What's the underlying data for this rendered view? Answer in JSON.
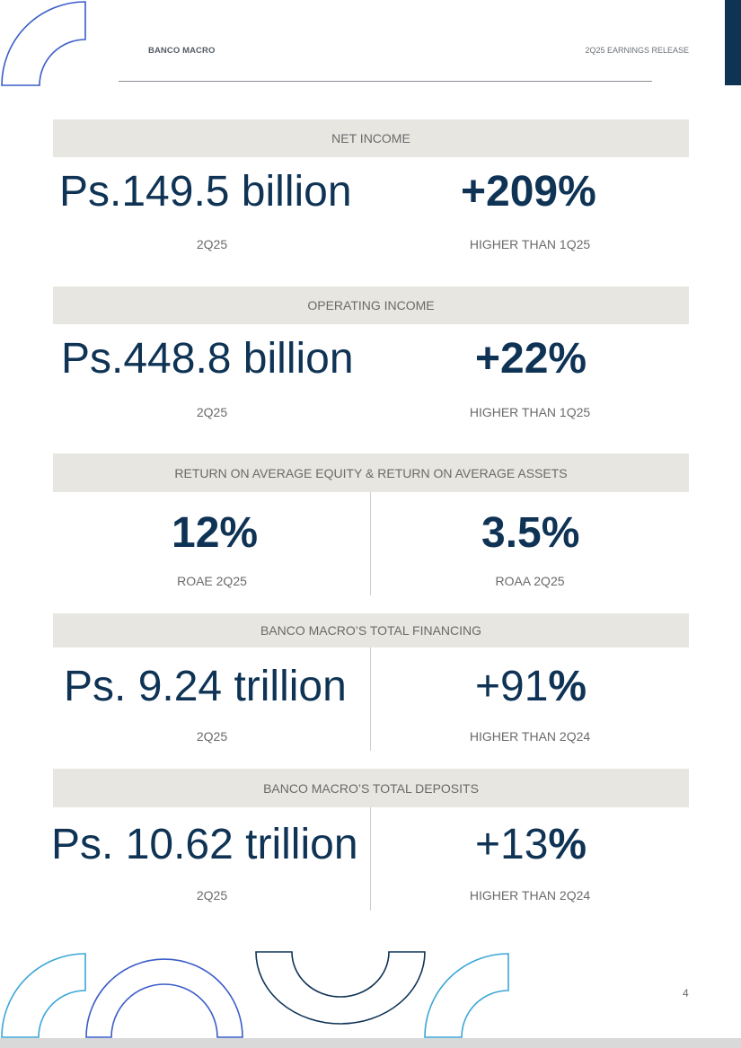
{
  "header": {
    "company": "BANCO MACRO",
    "report": "2Q25 EARNINGS RELEASE"
  },
  "sections": [
    {
      "title": "NET INCOME",
      "left_value": "Ps.149.5 billion",
      "left_label": "2Q25",
      "right_value": "+209%",
      "right_label": "HIGHER THAN 1Q25"
    },
    {
      "title": "OPERATING INCOME",
      "left_value": "Ps.448.8 billion",
      "left_label": "2Q25",
      "right_value": "+22%",
      "right_label": "HIGHER THAN 1Q25"
    },
    {
      "title": "RETURN ON AVERAGE EQUITY & RETURN ON AVERAGE ASSETS",
      "left_value": "12%",
      "left_label": "ROAE 2Q25",
      "right_value": "3.5%",
      "right_label": "ROAA 2Q25"
    },
    {
      "title": "BANCO MACRO’S TOTAL FINANCING",
      "left_value": "Ps. 9.24 trillion",
      "left_label": "2Q25",
      "right_value_number": "+91",
      "right_value_pct": "%",
      "right_label": "HIGHER THAN 2Q24"
    },
    {
      "title": "BANCO MACRO’S TOTAL DEPOSITS",
      "left_value": "Ps. 10.62 trillion",
      "left_label": "2Q25",
      "right_value_number": "+13",
      "right_value_pct": "%",
      "right_label": "HIGHER THAN 2Q24"
    }
  ],
  "page_number": "4",
  "colors": {
    "navy": "#0f3355",
    "royal_blue": "#3a5cc8",
    "cyan": "#3aa6d6",
    "bar_gray": "#e8e6e1"
  }
}
